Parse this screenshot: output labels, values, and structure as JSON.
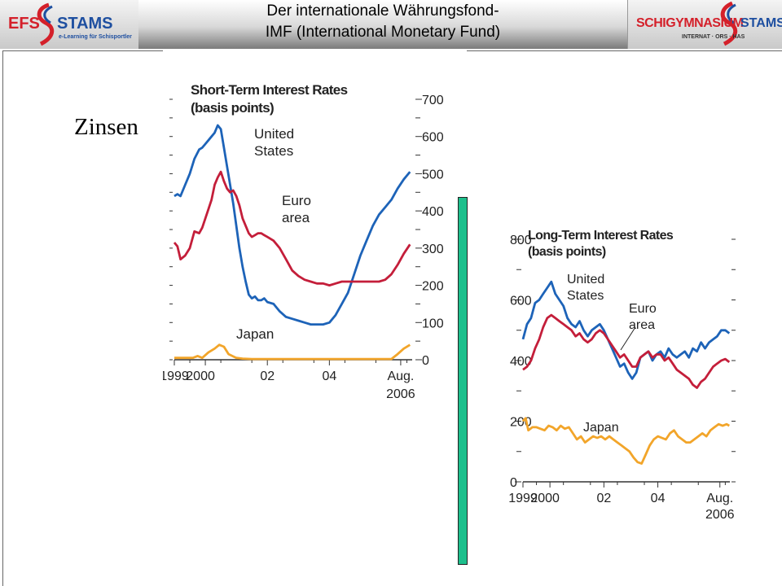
{
  "header": {
    "title_line1": "Der internationale Währungsfond-",
    "title_line2": "IMF (International Monetary Fund)",
    "logo_left": {
      "brand_a": "EFS",
      "brand_b": "STAMS",
      "tagline": "e-Learning für Schisportler",
      "icon": "ski-s-swoosh-icon"
    },
    "logo_right": {
      "brand_a": "SCHIGYMNASIUM",
      "brand_b": "STAMS",
      "tagline": "INTERNAT · ORS · HAS",
      "icon": "ski-s-swoosh-icon"
    }
  },
  "slide": {
    "heading": "Zinsen",
    "accent_bar_color": "#1dbf8c"
  },
  "chart_data": [
    {
      "type": "line",
      "title": "Short-Term Interest Rates",
      "subtitle": "(basis points)",
      "ylim": [
        0,
        700
      ],
      "yticks": [
        0,
        100,
        200,
        300,
        400,
        500,
        600,
        700
      ],
      "x_tick_labels": [
        "1999",
        "2000",
        "02",
        "04",
        "Aug.",
        "2006"
      ],
      "xlim": [
        1999.0,
        2006.67
      ],
      "y_axis_side": "right",
      "grid": false,
      "series": [
        {
          "name": "United States",
          "label_lines": [
            "United",
            "States"
          ],
          "color": "#1d63b8",
          "x": [
            1999.0,
            1999.1,
            1999.2,
            1999.35,
            1999.5,
            1999.65,
            1999.8,
            1999.9,
            2000.0,
            2000.1,
            2000.2,
            2000.3,
            2000.4,
            2000.5,
            2000.6,
            2000.7,
            2000.8,
            2000.9,
            2001.0,
            2001.1,
            2001.2,
            2001.3,
            2001.4,
            2001.5,
            2001.6,
            2001.7,
            2001.8,
            2001.9,
            2002.0,
            2002.2,
            2002.4,
            2002.6,
            2002.8,
            2003.0,
            2003.2,
            2003.4,
            2003.6,
            2003.8,
            2004.0,
            2004.2,
            2004.4,
            2004.6,
            2004.8,
            2005.0,
            2005.2,
            2005.4,
            2005.6,
            2005.8,
            2006.0,
            2006.2,
            2006.4,
            2006.6
          ],
          "values": [
            440,
            445,
            440,
            470,
            500,
            540,
            565,
            570,
            580,
            590,
            600,
            610,
            630,
            620,
            570,
            520,
            470,
            420,
            360,
            300,
            250,
            210,
            175,
            165,
            170,
            160,
            160,
            165,
            155,
            150,
            130,
            115,
            110,
            105,
            100,
            95,
            95,
            95,
            100,
            120,
            150,
            180,
            230,
            280,
            320,
            360,
            390,
            410,
            430,
            460,
            485,
            505
          ]
        },
        {
          "name": "Euro area",
          "label_lines": [
            "Euro",
            "area"
          ],
          "color": "#c41e3a",
          "x": [
            1999.0,
            1999.1,
            1999.2,
            1999.35,
            1999.5,
            1999.65,
            1999.8,
            1999.9,
            2000.0,
            2000.1,
            2000.2,
            2000.3,
            2000.4,
            2000.5,
            2000.6,
            2000.7,
            2000.8,
            2000.9,
            2001.0,
            2001.1,
            2001.2,
            2001.3,
            2001.4,
            2001.5,
            2001.6,
            2001.7,
            2001.8,
            2001.9,
            2002.0,
            2002.2,
            2002.4,
            2002.6,
            2002.8,
            2003.0,
            2003.2,
            2003.4,
            2003.6,
            2003.8,
            2004.0,
            2004.2,
            2004.4,
            2004.6,
            2004.8,
            2005.0,
            2005.2,
            2005.4,
            2005.6,
            2005.8,
            2006.0,
            2006.2,
            2006.4,
            2006.6
          ],
          "values": [
            315,
            305,
            270,
            280,
            300,
            345,
            340,
            355,
            380,
            405,
            430,
            470,
            490,
            505,
            480,
            460,
            450,
            455,
            440,
            415,
            380,
            360,
            340,
            330,
            335,
            340,
            340,
            335,
            330,
            320,
            300,
            270,
            240,
            225,
            215,
            210,
            205,
            205,
            200,
            205,
            210,
            210,
            210,
            210,
            210,
            210,
            210,
            215,
            230,
            255,
            285,
            310
          ]
        },
        {
          "name": "Japan",
          "label_lines": [
            "Japan"
          ],
          "color": "#f2a52a",
          "x": [
            1999.0,
            1999.3,
            1999.6,
            1999.75,
            1999.9,
            2000.1,
            2000.3,
            2000.45,
            2000.6,
            2000.75,
            2001.0,
            2001.2,
            2001.5,
            2002.0,
            2002.5,
            2003.0,
            2003.5,
            2004.0,
            2004.5,
            2005.0,
            2005.5,
            2006.0,
            2006.2,
            2006.4,
            2006.6
          ],
          "values": [
            5,
            5,
            5,
            10,
            5,
            20,
            30,
            40,
            35,
            15,
            5,
            3,
            2,
            2,
            2,
            2,
            2,
            2,
            2,
            2,
            2,
            2,
            15,
            30,
            40
          ]
        }
      ]
    },
    {
      "type": "line",
      "title": "Long-Term Interest Rates",
      "subtitle": "(basis points)",
      "ylim": [
        0,
        800
      ],
      "yticks": [
        0,
        200,
        400,
        600,
        800
      ],
      "x_tick_labels": [
        "1999",
        "2000",
        "02",
        "04",
        "Aug.",
        "2006"
      ],
      "xlim": [
        1999.0,
        2006.67
      ],
      "y_axis_side": "left",
      "grid": false,
      "series": [
        {
          "name": "United States",
          "label_lines": [
            "United",
            "States"
          ],
          "color": "#1d63b8",
          "x": [
            1999.0,
            1999.15,
            1999.3,
            1999.45,
            1999.6,
            1999.75,
            1999.9,
            2000.05,
            2000.2,
            2000.35,
            2000.5,
            2000.65,
            2000.8,
            2000.95,
            2001.1,
            2001.25,
            2001.4,
            2001.55,
            2001.7,
            2001.85,
            2002.0,
            2002.15,
            2002.3,
            2002.45,
            2002.6,
            2002.75,
            2002.9,
            2003.05,
            2003.2,
            2003.35,
            2003.5,
            2003.65,
            2003.8,
            2003.95,
            2004.1,
            2004.25,
            2004.4,
            2004.55,
            2004.7,
            2004.85,
            2005.0,
            2005.15,
            2005.3,
            2005.45,
            2005.6,
            2005.75,
            2005.9,
            2006.05,
            2006.2,
            2006.35,
            2006.5,
            2006.65
          ],
          "values": [
            470,
            520,
            540,
            590,
            600,
            620,
            640,
            660,
            620,
            600,
            580,
            540,
            520,
            510,
            530,
            500,
            480,
            500,
            510,
            520,
            500,
            470,
            440,
            410,
            380,
            390,
            360,
            340,
            360,
            410,
            420,
            430,
            400,
            420,
            430,
            410,
            440,
            420,
            410,
            420,
            430,
            410,
            440,
            430,
            460,
            440,
            460,
            470,
            480,
            500,
            500,
            490
          ]
        },
        {
          "name": "Euro area",
          "label_lines": [
            "Euro",
            "area"
          ],
          "color": "#c41e3a",
          "x": [
            1999.0,
            1999.15,
            1999.3,
            1999.45,
            1999.6,
            1999.75,
            1999.9,
            2000.05,
            2000.2,
            2000.35,
            2000.5,
            2000.65,
            2000.8,
            2000.95,
            2001.1,
            2001.25,
            2001.4,
            2001.55,
            2001.7,
            2001.85,
            2002.0,
            2002.15,
            2002.3,
            2002.45,
            2002.6,
            2002.75,
            2002.9,
            2003.05,
            2003.2,
            2003.35,
            2003.5,
            2003.65,
            2003.8,
            2003.95,
            2004.1,
            2004.25,
            2004.4,
            2004.55,
            2004.7,
            2004.85,
            2005.0,
            2005.15,
            2005.3,
            2005.45,
            2005.6,
            2005.75,
            2005.9,
            2006.05,
            2006.2,
            2006.35,
            2006.5,
            2006.65
          ],
          "values": [
            370,
            380,
            400,
            440,
            470,
            510,
            540,
            550,
            540,
            530,
            520,
            510,
            500,
            480,
            490,
            470,
            460,
            470,
            490,
            500,
            490,
            470,
            450,
            430,
            410,
            420,
            400,
            380,
            380,
            410,
            420,
            430,
            410,
            420,
            420,
            400,
            410,
            390,
            370,
            360,
            350,
            340,
            320,
            310,
            330,
            340,
            360,
            380,
            390,
            400,
            405,
            395
          ]
        },
        {
          "name": "Japan",
          "label_lines": [
            "Japan"
          ],
          "color": "#f2a52a",
          "x": [
            1999.0,
            1999.1,
            1999.2,
            1999.35,
            1999.5,
            1999.65,
            1999.8,
            1999.95,
            2000.1,
            2000.25,
            2000.4,
            2000.55,
            2000.7,
            2000.85,
            2001.0,
            2001.15,
            2001.3,
            2001.45,
            2001.6,
            2001.75,
            2001.9,
            2002.05,
            2002.2,
            2002.35,
            2002.5,
            2002.65,
            2002.8,
            2002.95,
            2003.1,
            2003.25,
            2003.4,
            2003.55,
            2003.7,
            2003.85,
            2004.0,
            2004.15,
            2004.3,
            2004.45,
            2004.6,
            2004.75,
            2004.9,
            2005.05,
            2005.2,
            2005.35,
            2005.5,
            2005.65,
            2005.8,
            2005.95,
            2006.1,
            2006.25,
            2006.4,
            2006.55,
            2006.65
          ],
          "values": [
            200,
            210,
            170,
            180,
            180,
            175,
            170,
            185,
            180,
            170,
            185,
            175,
            180,
            160,
            140,
            150,
            130,
            140,
            150,
            145,
            150,
            140,
            150,
            140,
            130,
            120,
            110,
            100,
            80,
            65,
            60,
            90,
            120,
            140,
            150,
            145,
            140,
            160,
            170,
            150,
            140,
            130,
            130,
            140,
            150,
            160,
            150,
            170,
            180,
            190,
            185,
            190,
            185
          ]
        }
      ]
    }
  ]
}
